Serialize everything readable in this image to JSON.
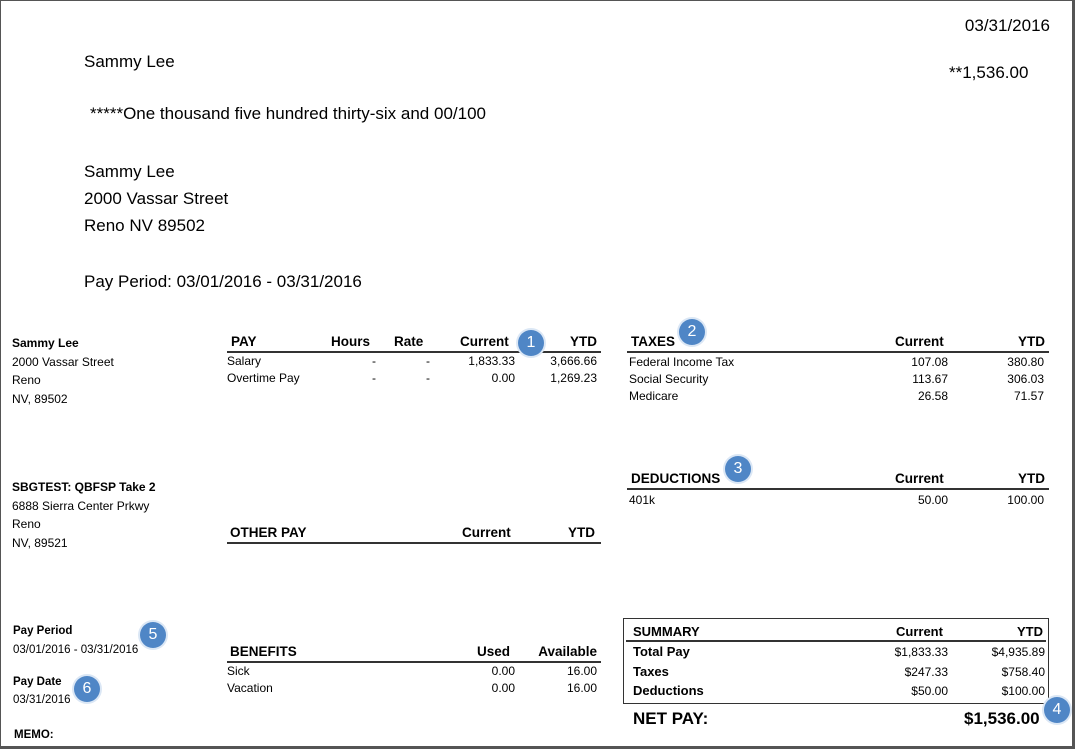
{
  "check": {
    "date": "03/31/2016",
    "payee": "Sammy Lee",
    "amount": "**1,536.00",
    "amount_words": "*****One thousand five hundred thirty-six and 00/100",
    "address": [
      "Sammy Lee",
      "2000 Vassar Street",
      "Reno NV 89502"
    ],
    "pay_period": "Pay Period: 03/01/2016 - 03/31/2016"
  },
  "employee": {
    "name": "Sammy Lee",
    "street": "2000 Vassar Street",
    "city": "Reno",
    "state_zip": "NV, 89502"
  },
  "company": {
    "name": "SBGTEST: QBFSP Take 2",
    "street": "6888 Sierra Center Prkwy",
    "city": "Reno",
    "state_zip": "NV, 89521"
  },
  "pay_period": {
    "label": "Pay Period",
    "value": "03/01/2016 - 03/31/2016"
  },
  "pay_date": {
    "label": "Pay Date",
    "value": "03/31/2016"
  },
  "memo": "MEMO:",
  "pay_table": {
    "headers": [
      "PAY",
      "Hours",
      "Rate",
      "Current",
      "YTD"
    ],
    "rows": [
      [
        "Salary",
        "-",
        "-",
        "1,833.33",
        "3,666.66"
      ],
      [
        "Overtime Pay",
        "-",
        "-",
        "0.00",
        "1,269.23"
      ]
    ]
  },
  "other_pay_table": {
    "headers": [
      "OTHER PAY",
      "Current",
      "YTD"
    ]
  },
  "benefits_table": {
    "headers": [
      "BENEFITS",
      "Used",
      "Available"
    ],
    "rows": [
      [
        "Sick",
        "0.00",
        "16.00"
      ],
      [
        "Vacation",
        "0.00",
        "16.00"
      ]
    ]
  },
  "taxes_table": {
    "headers": [
      "TAXES",
      "Current",
      "YTD"
    ],
    "rows": [
      [
        "Federal Income Tax",
        "107.08",
        "380.80"
      ],
      [
        "Social Security",
        "113.67",
        "306.03"
      ],
      [
        "Medicare",
        "26.58",
        "71.57"
      ]
    ]
  },
  "deductions_table": {
    "headers": [
      "DEDUCTIONS",
      "Current",
      "YTD"
    ],
    "rows": [
      [
        "401k",
        "50.00",
        "100.00"
      ]
    ]
  },
  "summary": {
    "headers": [
      "SUMMARY",
      "Current",
      "YTD"
    ],
    "rows": [
      [
        "Total Pay",
        "$1,833.33",
        "$4,935.89"
      ],
      [
        "Taxes",
        "$247.33",
        "$758.40"
      ],
      [
        "Deductions",
        "$50.00",
        "$100.00"
      ]
    ]
  },
  "net_pay": {
    "label": "NET PAY:",
    "value": "$1,536.00"
  },
  "callouts": [
    "1",
    "2",
    "3",
    "4",
    "5",
    "6"
  ],
  "colors": {
    "callout": "#4f86c6"
  }
}
